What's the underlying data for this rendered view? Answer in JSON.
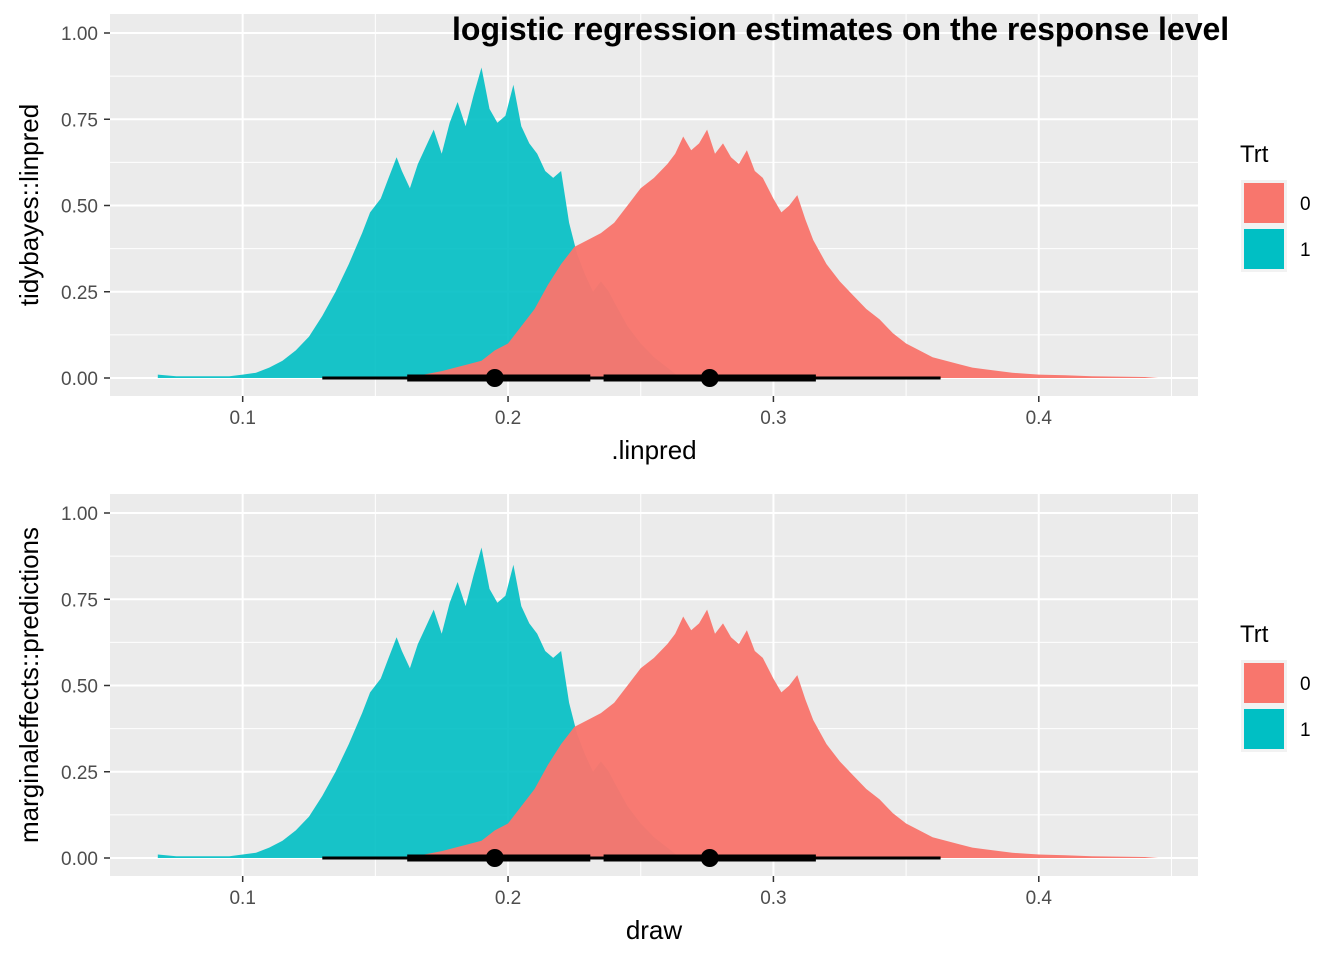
{
  "figure": {
    "title": "logistic regression estimates on the response level"
  },
  "colors": {
    "panel_bg": "#ebebeb",
    "grid": "#ffffff",
    "trt0": "#F8766D",
    "trt1": "#00BFC4",
    "interval": "#000000"
  },
  "chart_data": [
    {
      "type": "area",
      "subtype": "halfeye (density + point interval)",
      "xlabel": ".linpred",
      "ylabel": "tidybayes::linpred",
      "xlim": [
        0.05,
        0.46
      ],
      "ylim": [
        0,
        1.05
      ],
      "x_ticks": [
        "0.1",
        "0.2",
        "0.3",
        "0.4"
      ],
      "y_ticks": [
        "0.00",
        "0.25",
        "0.50",
        "0.75",
        "1.00"
      ],
      "grid": true,
      "legend": {
        "title": "Trt",
        "position": "right",
        "labels": [
          "0",
          "1"
        ]
      },
      "series": [
        {
          "name": "1",
          "x": [
            0.068,
            0.075,
            0.085,
            0.095,
            0.1,
            0.105,
            0.11,
            0.115,
            0.12,
            0.125,
            0.13,
            0.135,
            0.14,
            0.145,
            0.148,
            0.152,
            0.155,
            0.158,
            0.16,
            0.163,
            0.166,
            0.169,
            0.172,
            0.175,
            0.178,
            0.181,
            0.184,
            0.187,
            0.19,
            0.193,
            0.196,
            0.199,
            0.202,
            0.205,
            0.208,
            0.211,
            0.214,
            0.217,
            0.22,
            0.223,
            0.226,
            0.229,
            0.232,
            0.235,
            0.238,
            0.24,
            0.245,
            0.25,
            0.255,
            0.26,
            0.265
          ],
          "y": [
            0.01,
            0.005,
            0.005,
            0.005,
            0.01,
            0.015,
            0.03,
            0.05,
            0.08,
            0.12,
            0.18,
            0.25,
            0.33,
            0.42,
            0.48,
            0.52,
            0.58,
            0.64,
            0.6,
            0.55,
            0.62,
            0.67,
            0.72,
            0.65,
            0.74,
            0.8,
            0.73,
            0.82,
            0.9,
            0.78,
            0.74,
            0.76,
            0.85,
            0.73,
            0.68,
            0.65,
            0.6,
            0.58,
            0.6,
            0.45,
            0.36,
            0.3,
            0.25,
            0.28,
            0.25,
            0.22,
            0.15,
            0.1,
            0.06,
            0.03,
            0.0
          ],
          "point": 0.195,
          "interval_66": [
            0.162,
            0.231
          ],
          "interval_95": [
            0.13,
            0.263
          ]
        },
        {
          "name": "0",
          "x": [
            0.155,
            0.165,
            0.175,
            0.185,
            0.19,
            0.195,
            0.2,
            0.205,
            0.21,
            0.215,
            0.22,
            0.225,
            0.23,
            0.235,
            0.24,
            0.245,
            0.25,
            0.255,
            0.26,
            0.263,
            0.266,
            0.269,
            0.272,
            0.275,
            0.278,
            0.281,
            0.284,
            0.287,
            0.29,
            0.293,
            0.296,
            0.3,
            0.303,
            0.306,
            0.309,
            0.312,
            0.315,
            0.32,
            0.325,
            0.33,
            0.335,
            0.34,
            0.345,
            0.35,
            0.355,
            0.36,
            0.365,
            0.37,
            0.375,
            0.38,
            0.39,
            0.4,
            0.41,
            0.42,
            0.43,
            0.44,
            0.445
          ],
          "y": [
            0.0,
            0.005,
            0.02,
            0.04,
            0.05,
            0.08,
            0.1,
            0.15,
            0.2,
            0.27,
            0.33,
            0.38,
            0.4,
            0.42,
            0.45,
            0.5,
            0.55,
            0.58,
            0.62,
            0.65,
            0.7,
            0.66,
            0.68,
            0.72,
            0.65,
            0.68,
            0.64,
            0.62,
            0.66,
            0.6,
            0.58,
            0.52,
            0.48,
            0.5,
            0.53,
            0.46,
            0.4,
            0.33,
            0.28,
            0.24,
            0.2,
            0.17,
            0.13,
            0.1,
            0.08,
            0.06,
            0.05,
            0.04,
            0.03,
            0.025,
            0.015,
            0.01,
            0.008,
            0.005,
            0.004,
            0.003,
            0.0
          ],
          "point": 0.276,
          "interval_66": [
            0.236,
            0.316
          ],
          "interval_95": [
            0.197,
            0.363
          ]
        }
      ]
    },
    {
      "type": "area",
      "subtype": "halfeye (density + point interval)",
      "xlabel": "draw",
      "ylabel": "marginaleffects::predictions",
      "xlim": [
        0.05,
        0.46
      ],
      "ylim": [
        0,
        1.05
      ],
      "x_ticks": [
        "0.1",
        "0.2",
        "0.3",
        "0.4"
      ],
      "y_ticks": [
        "0.00",
        "0.25",
        "0.50",
        "0.75",
        "1.00"
      ],
      "grid": true,
      "legend": {
        "title": "Trt",
        "position": "right",
        "labels": [
          "0",
          "1"
        ]
      },
      "series": [
        {
          "name": "1",
          "x": [
            0.068,
            0.075,
            0.085,
            0.095,
            0.1,
            0.105,
            0.11,
            0.115,
            0.12,
            0.125,
            0.13,
            0.135,
            0.14,
            0.145,
            0.148,
            0.152,
            0.155,
            0.158,
            0.16,
            0.163,
            0.166,
            0.169,
            0.172,
            0.175,
            0.178,
            0.181,
            0.184,
            0.187,
            0.19,
            0.193,
            0.196,
            0.199,
            0.202,
            0.205,
            0.208,
            0.211,
            0.214,
            0.217,
            0.22,
            0.223,
            0.226,
            0.229,
            0.232,
            0.235,
            0.238,
            0.24,
            0.245,
            0.25,
            0.255,
            0.26,
            0.265
          ],
          "y": [
            0.01,
            0.005,
            0.005,
            0.005,
            0.01,
            0.015,
            0.03,
            0.05,
            0.08,
            0.12,
            0.18,
            0.25,
            0.33,
            0.42,
            0.48,
            0.52,
            0.58,
            0.64,
            0.6,
            0.55,
            0.62,
            0.67,
            0.72,
            0.65,
            0.74,
            0.8,
            0.73,
            0.82,
            0.9,
            0.78,
            0.74,
            0.76,
            0.85,
            0.73,
            0.68,
            0.65,
            0.6,
            0.58,
            0.6,
            0.45,
            0.36,
            0.3,
            0.25,
            0.28,
            0.25,
            0.22,
            0.15,
            0.1,
            0.06,
            0.03,
            0.0
          ],
          "point": 0.195,
          "interval_66": [
            0.162,
            0.231
          ],
          "interval_95": [
            0.13,
            0.263
          ]
        },
        {
          "name": "0",
          "x": [
            0.155,
            0.165,
            0.175,
            0.185,
            0.19,
            0.195,
            0.2,
            0.205,
            0.21,
            0.215,
            0.22,
            0.225,
            0.23,
            0.235,
            0.24,
            0.245,
            0.25,
            0.255,
            0.26,
            0.263,
            0.266,
            0.269,
            0.272,
            0.275,
            0.278,
            0.281,
            0.284,
            0.287,
            0.29,
            0.293,
            0.296,
            0.3,
            0.303,
            0.306,
            0.309,
            0.312,
            0.315,
            0.32,
            0.325,
            0.33,
            0.335,
            0.34,
            0.345,
            0.35,
            0.355,
            0.36,
            0.365,
            0.37,
            0.375,
            0.38,
            0.39,
            0.4,
            0.41,
            0.42,
            0.43,
            0.44,
            0.445
          ],
          "y": [
            0.0,
            0.005,
            0.02,
            0.04,
            0.05,
            0.08,
            0.1,
            0.15,
            0.2,
            0.27,
            0.33,
            0.38,
            0.4,
            0.42,
            0.45,
            0.5,
            0.55,
            0.58,
            0.62,
            0.65,
            0.7,
            0.66,
            0.68,
            0.72,
            0.65,
            0.68,
            0.64,
            0.62,
            0.66,
            0.6,
            0.58,
            0.52,
            0.48,
            0.5,
            0.53,
            0.46,
            0.4,
            0.33,
            0.28,
            0.24,
            0.2,
            0.17,
            0.13,
            0.1,
            0.08,
            0.06,
            0.05,
            0.04,
            0.03,
            0.025,
            0.015,
            0.01,
            0.008,
            0.005,
            0.004,
            0.003,
            0.0
          ],
          "point": 0.276,
          "interval_66": [
            0.236,
            0.316
          ],
          "interval_95": [
            0.197,
            0.363
          ]
        }
      ]
    }
  ]
}
